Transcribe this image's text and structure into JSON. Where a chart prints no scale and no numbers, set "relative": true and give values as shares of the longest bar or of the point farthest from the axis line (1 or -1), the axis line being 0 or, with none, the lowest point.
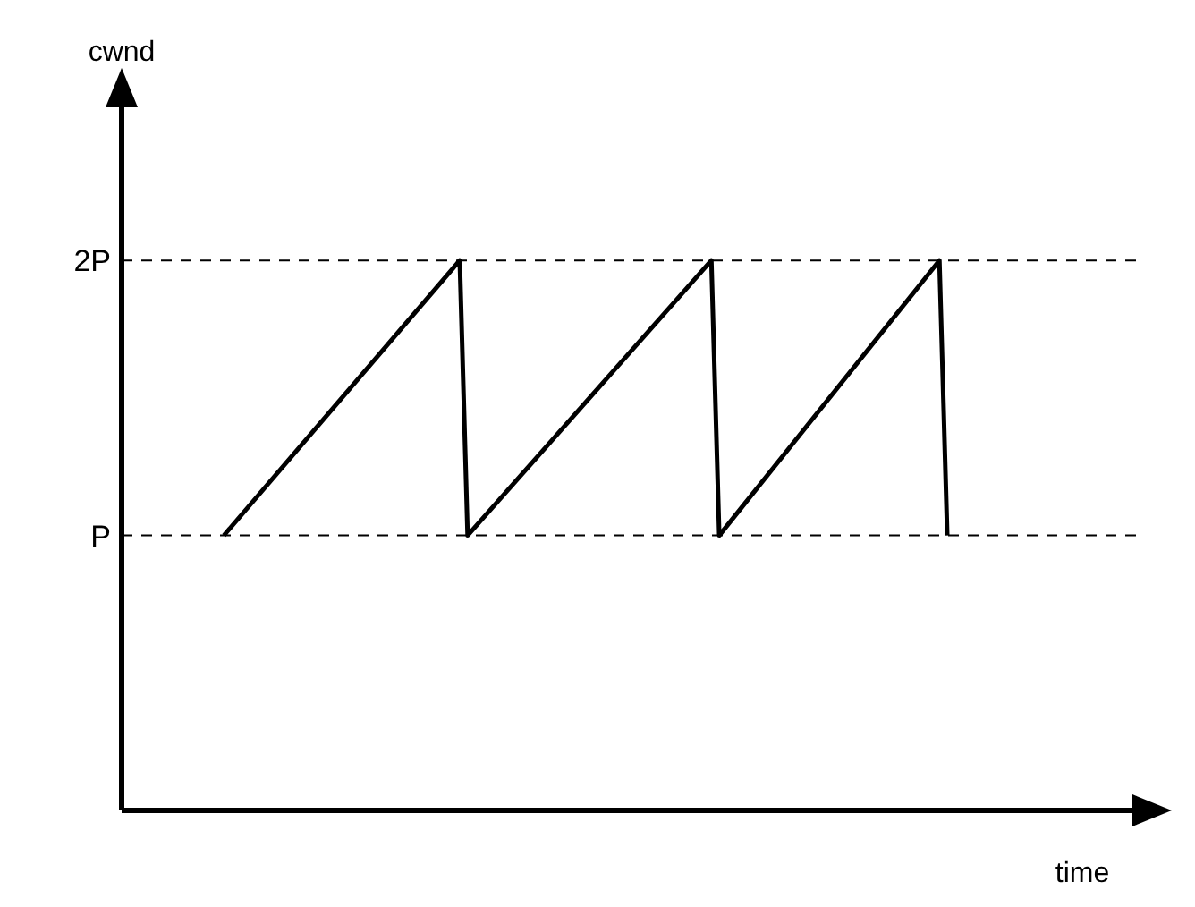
{
  "chart_data": {
    "type": "line",
    "relative": true,
    "xlabel": "time",
    "annotations": [
      "cwnd"
    ],
    "categories": [
      null,
      null,
      null,
      null,
      null,
      null,
      null,
      null,
      null,
      null,
      null,
      null,
      null,
      null,
      null,
      null,
      null,
      null,
      null,
      null,
      null,
      null,
      null,
      null,
      null,
      null,
      null,
      null,
      null,
      null,
      null,
      null,
      null,
      null,
      null,
      null,
      null,
      null,
      null,
      null,
      null,
      null,
      null,
      null,
      null,
      null,
      null,
      null,
      null,
      null,
      null,
      null,
      null,
      null,
      null,
      null,
      null,
      null,
      null,
      null,
      null,
      null,
      null,
      null,
      null,
      null,
      null,
      null,
      null,
      null,
      null,
      null,
      null,
      null,
      null,
      null,
      null,
      null,
      null,
      null,
      null,
      null,
      null,
      null,
      null,
      null,
      null,
      null,
      null,
      null,
      null,
      null,
      null,
      null,
      null,
      null,
      null,
      null,
      null,
      null,
      null,
      null,
      null,
      null,
      null,
      null,
      null,
      null,
      null,
      null,
      null,
      null,
      null,
      null,
      null,
      null,
      null,
      null,
      null,
      null,
      null,
      null,
      null,
      null,
      null,
      null,
      null,
      null,
      null,
      null
    ],
    "series": [
      {
        "color": "#000000",
        "values": [
          null,
          null,
          null,
          null,
          null,
          null,
          null,
          null,
          null,
          null,
          null,
          null,
          null,
          0.5,
          null,
          null,
          null,
          null,
          null,
          null,
          null,
          null,
          null,
          null,
          null,
          null,
          null,
          null,
          null,
          null,
          null,
          null,
          null,
          null,
          null,
          null,
          null,
          null,
          null,
          null,
          null,
          null,
          null,
          1,
          0.5,
          null,
          null,
          null,
          null,
          null,
          null,
          null,
          null,
          null,
          null,
          null,
          null,
          null,
          null,
          null,
          null,
          null,
          null,
          null,
          null,
          null,
          null,
          null,
          null,
          null,
          null,
          null,
          null,
          null,
          null,
          1,
          0.5,
          null,
          null,
          null,
          null,
          null,
          null,
          null,
          null,
          null,
          null,
          null,
          null,
          null,
          null,
          null,
          null,
          null,
          null,
          null,
          null,
          null,
          null,
          null,
          null,
          null,
          null,
          null,
          1,
          0.5,
          null,
          null,
          null,
          null,
          null,
          null,
          null,
          null,
          null,
          null,
          null,
          null,
          null,
          null,
          null,
          null,
          null,
          null,
          null,
          null,
          null,
          null,
          null,
          null
        ]
      }
    ],
    "ref_lines": [
      {
        "axis": "y",
        "value": 0.5,
        "label": "P",
        "line_style": "dashed",
        "color": "#000000"
      },
      {
        "axis": "y",
        "value": 1,
        "label": "2P",
        "line_style": "dashed",
        "color": "#000000"
      }
    ]
  }
}
